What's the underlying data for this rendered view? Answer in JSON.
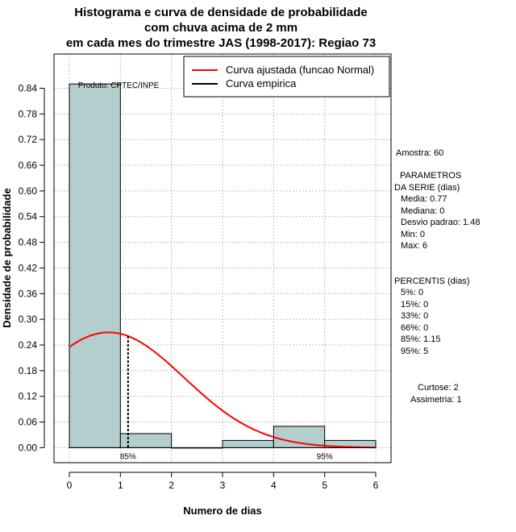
{
  "chart_data": {
    "type": "bar",
    "title": [
      "Histograma e curva de densidade de probabilidade",
      "com chuva acima de 2 mm",
      "em cada mes do trimestre JAS (1998-2017): Regiao 73"
    ],
    "xlabel": "Numero de dias",
    "ylabel": "Densidade de probabilidade",
    "xlim": [
      -0.3,
      6.3
    ],
    "ylim": [
      -0.035,
      0.92
    ],
    "x_ticks": [
      0,
      1,
      2,
      3,
      4,
      5,
      6
    ],
    "y_ticks": [
      0.0,
      0.06,
      0.12,
      0.18,
      0.24,
      0.3,
      0.36,
      0.42,
      0.48,
      0.54,
      0.6,
      0.66,
      0.72,
      0.78,
      0.84
    ],
    "y_tick_labels": [
      "0.00",
      "0.06",
      "0.12",
      "0.18",
      "0.24",
      "0.30",
      "0.36",
      "0.42",
      "0.48",
      "0.54",
      "0.60",
      "0.66",
      "0.72",
      "0.78",
      "0.84"
    ],
    "histogram": {
      "bins": [
        [
          0,
          1
        ],
        [
          1,
          2
        ],
        [
          2,
          3
        ],
        [
          3,
          4
        ],
        [
          4,
          5
        ],
        [
          5,
          6
        ]
      ],
      "values": [
        0.85,
        0.033,
        0.0,
        0.017,
        0.05,
        0.017
      ],
      "color": "#b4cdcd"
    },
    "normal_curve": {
      "name": "Curva ajustada (funcao Normal)",
      "mean": 0.77,
      "sd": 1.48,
      "x_range": [
        0,
        6
      ],
      "color": "#ff0000"
    },
    "empirical_curve": {
      "name": "Curva empirica",
      "color": "#000000"
    },
    "percentile_lines": [
      {
        "label": "85%",
        "x": 1.15
      },
      {
        "label": "95%",
        "x": 5.0
      }
    ],
    "annotation": "Produto: CPTEC/INPE"
  },
  "sidebar": {
    "amostra": "Amostra: 60",
    "parametros_title_1": "PARAMETROS",
    "parametros_title_2": "DA SERIE (dias)",
    "media": "Media: 0.77",
    "mediana": "Mediana: 0",
    "desvio": "Desvio padrao: 1.48",
    "min": "Min: 0",
    "max": "Max: 6",
    "percentis_title": "PERCENTIS (dias)",
    "p5": "5%: 0",
    "p15": "15%: 0",
    "p33": "33%: 0",
    "p66": "66%: 0",
    "p85": "85%: 1.15",
    "p95": "95%: 5",
    "curtose": "Curtose: 2",
    "assimetria": "Assimetria: 1"
  }
}
